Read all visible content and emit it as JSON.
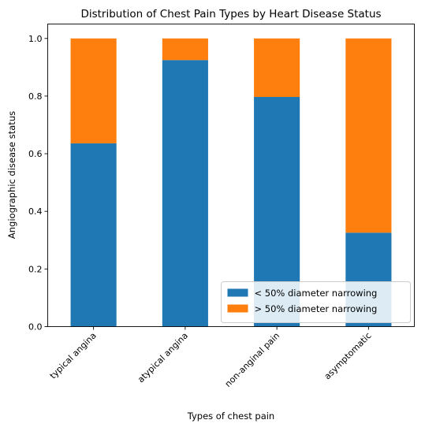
{
  "chart_data": {
    "type": "bar",
    "stacked": true,
    "title": "Distribution of Chest Pain Types by Heart Disease Status",
    "xlabel": "Types of chest pain",
    "ylabel": "Angiographic disease status",
    "categories": [
      "typical angina",
      "atypical angina",
      "non-anginal pain",
      "asymptomatic"
    ],
    "series": [
      {
        "name": "< 50% diameter narrowing",
        "values": [
          0.636,
          0.925,
          0.797,
          0.326
        ],
        "color": "#1f77b4"
      },
      {
        "name": "> 50% diameter narrowing",
        "values": [
          0.364,
          0.075,
          0.203,
          0.674
        ],
        "color": "#ff7f0e"
      }
    ],
    "ylim": [
      0,
      1.05
    ],
    "yticks": [
      "0.0",
      "0.2",
      "0.4",
      "0.6",
      "0.8",
      "1.0"
    ],
    "ytick_values": [
      0,
      0.2,
      0.4,
      0.6,
      0.8,
      1.0
    ],
    "grid": false,
    "legend_position": "lower-right",
    "xtick_rotation": 45
  }
}
